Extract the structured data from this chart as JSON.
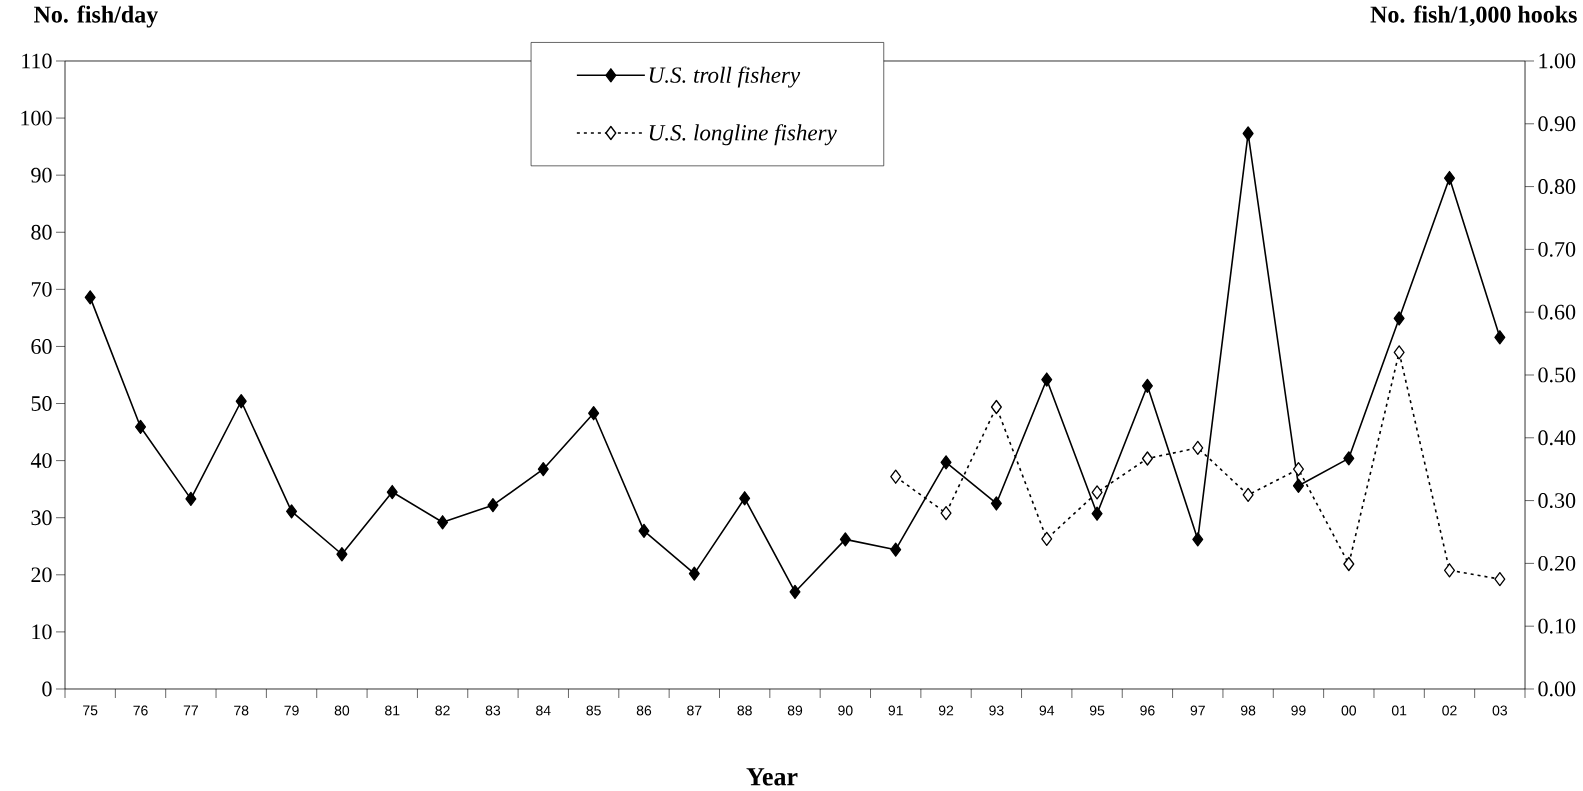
{
  "chart_data": {
    "type": "line",
    "xlabel": "Year",
    "ylabel": "No. fish/day",
    "y2label": "No. fish/1,000 hooks",
    "categories": [
      "75",
      "76",
      "77",
      "78",
      "79",
      "80",
      "81",
      "82",
      "83",
      "84",
      "85",
      "86",
      "87",
      "88",
      "89",
      "90",
      "91",
      "92",
      "93",
      "94",
      "95",
      "96",
      "97",
      "98",
      "99",
      "00",
      "01",
      "02",
      "03"
    ],
    "series": [
      {
        "name": "U.S. troll fishery",
        "color": "#000000",
        "marker": "diamond",
        "line_style": "solid",
        "values": [
          68.6,
          45.9,
          33.3,
          50.4,
          31.1,
          23.6,
          34.5,
          29.2,
          32.2,
          38.5,
          48.3,
          27.7,
          20.2,
          33.4,
          17.0,
          26.2,
          24.4,
          39.7,
          32.5,
          54.2,
          30.7,
          53.1,
          26.2,
          97.3,
          35.6,
          40.4,
          64.9,
          89.5,
          61.6
        ]
      },
      {
        "name": "U.S. longline fishery",
        "color": "#000000",
        "marker": "diamond",
        "line_style": "dotted",
        "axis": "y2",
        "values": [
          null,
          null,
          null,
          null,
          null,
          null,
          null,
          null,
          null,
          null,
          null,
          null,
          null,
          null,
          null,
          null,
          0.338,
          0.28,
          0.449,
          0.239,
          0.313,
          0.367,
          0.384,
          0.309,
          0.35,
          0.199,
          0.536,
          0.189,
          0.175
        ]
      }
    ],
    "ylim": [
      0,
      110
    ],
    "yticks": [
      0,
      10,
      20,
      30,
      40,
      50,
      60,
      70,
      80,
      90,
      100,
      110
    ],
    "y2lim": [
      0,
      1
    ],
    "y2ticks": [
      {
        "value": 0,
        "label": "0.00"
      },
      {
        "value": 0.1,
        "label": "0.10"
      },
      {
        "value": 0.2,
        "label": "0.20"
      },
      {
        "value": 0.3,
        "label": "0.30"
      },
      {
        "value": 0.4,
        "label": "0.40"
      },
      {
        "value": 0.5,
        "label": "0.50"
      },
      {
        "value": 0.6,
        "label": "0.60"
      },
      {
        "value": 0.7,
        "label": "0.70"
      },
      {
        "value": 0.8,
        "label": "0.80"
      },
      {
        "value": 0.9,
        "label": "0.90"
      },
      {
        "value": 1,
        "label": "1.00"
      }
    ],
    "legend": "top",
    "grid": false
  }
}
